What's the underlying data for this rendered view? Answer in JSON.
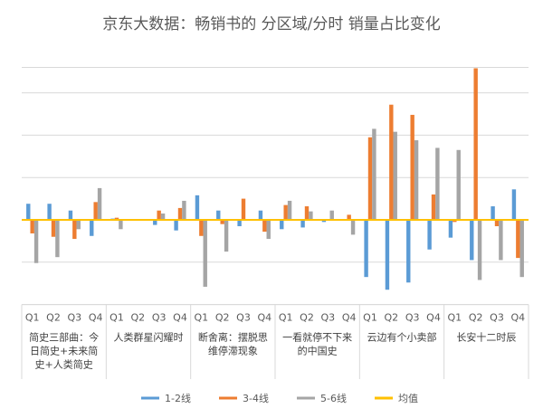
{
  "chart_data": {
    "type": "bar",
    "title": "京东大数据：畅销书的 分区域/分时 销量占比变化",
    "ylim": [
      -2.0,
      3.6
    ],
    "grid": true,
    "legend_position": "bottom",
    "groups": [
      {
        "lines": [
          "简史三部曲：今",
          "日简史+未来简",
          "史+人类简史"
        ]
      },
      {
        "lines": [
          "人类群星闪耀时"
        ]
      },
      {
        "lines": [
          "断舍离：摆脱思",
          "维停滞现象"
        ]
      },
      {
        "lines": [
          "一看就停不下来",
          "的中国史"
        ]
      },
      {
        "lines": [
          "云边有个小卖部"
        ]
      },
      {
        "lines": [
          "长安十二时辰"
        ]
      }
    ],
    "quarters": [
      "Q1",
      "Q2",
      "Q3",
      "Q4"
    ],
    "series": [
      {
        "name": "1-2线",
        "color": "#5B9BD5",
        "values": [
          0.38,
          0.38,
          0.22,
          -0.38,
          0.03,
          0,
          -0.12,
          -0.25,
          0.58,
          0.22,
          -0.15,
          0.22,
          -0.22,
          -0.18,
          -0.05,
          0,
          -1.35,
          -1.65,
          -1.48,
          -0.7,
          -0.42,
          -0.95,
          0.32,
          0.72
        ]
      },
      {
        "name": "3-4线",
        "color": "#ED7D31",
        "values": [
          -0.32,
          -0.4,
          -0.45,
          0.42,
          0.05,
          0,
          0.22,
          0.28,
          -0.38,
          -0.1,
          0.5,
          -0.28,
          0.35,
          0.32,
          0,
          0.12,
          1.95,
          2.72,
          2.48,
          0.6,
          -0.05,
          3.58,
          -0.15,
          -0.9
        ]
      },
      {
        "name": "5-6线",
        "color": "#A5A5A5",
        "values": [
          -1.02,
          -0.88,
          -0.22,
          0.75,
          -0.22,
          0,
          0.15,
          0.45,
          -1.58,
          -0.75,
          0,
          -0.45,
          0.45,
          0.2,
          0.22,
          -0.35,
          2.15,
          2.08,
          1.88,
          1.7,
          1.65,
          -1.42,
          -0.95,
          -1.35
        ]
      }
    ],
    "reference_line": {
      "name": "均值",
      "value": 0,
      "color": "#FFC000"
    }
  }
}
